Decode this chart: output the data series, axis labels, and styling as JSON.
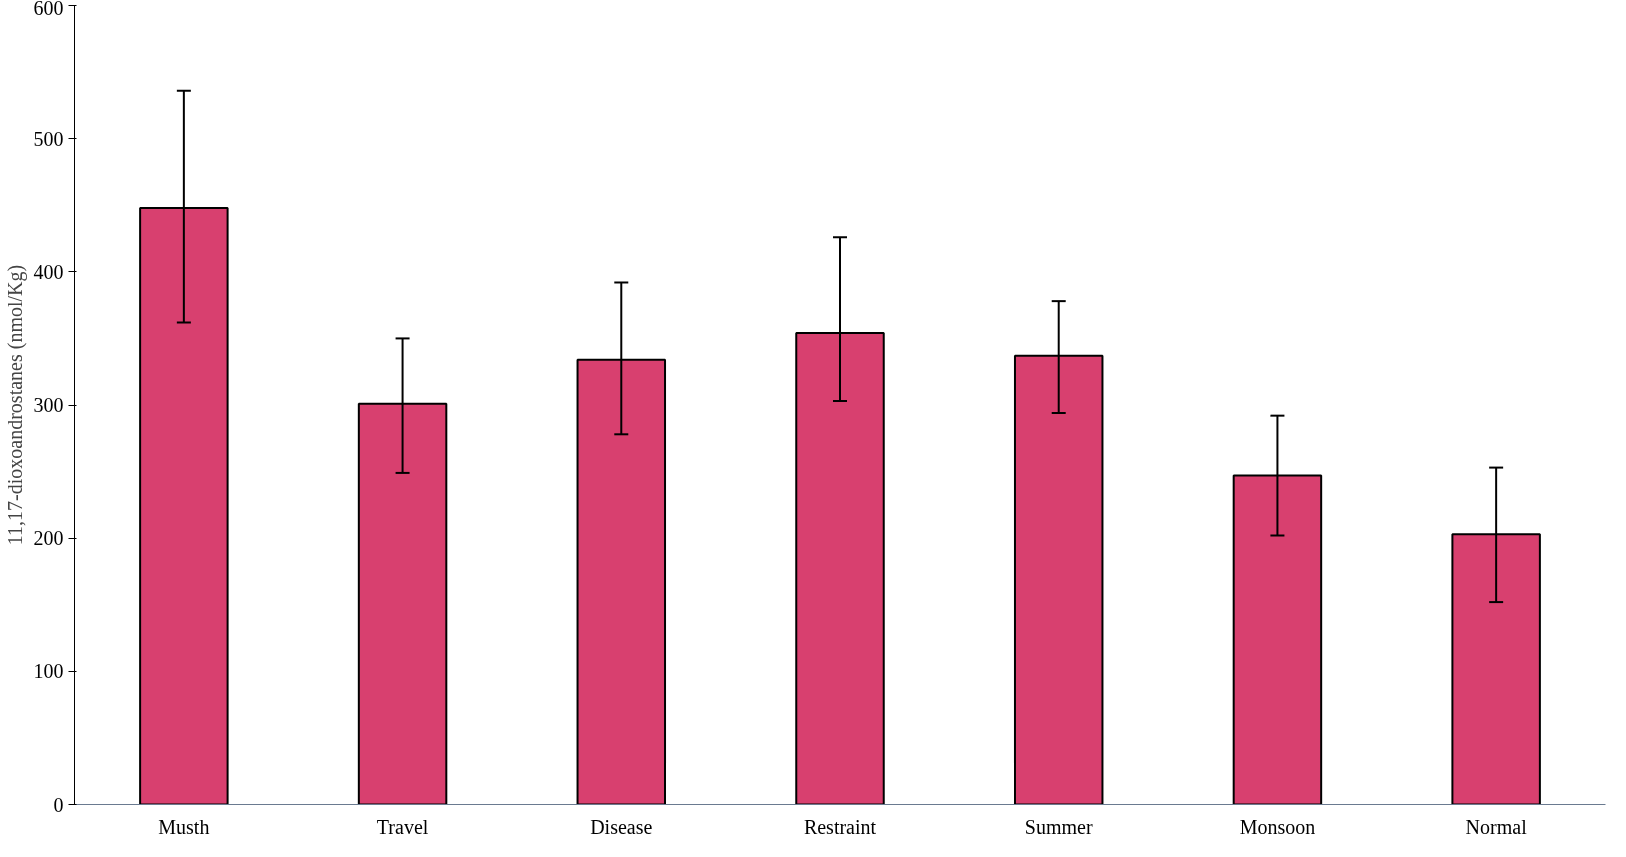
{
  "chart_data": {
    "type": "bar",
    "ylabel": "11,17-dioxoandrostanes (nmol/Kg)",
    "categories": [
      "Musth",
      "Travel",
      "Disease",
      "Restraint",
      "Summer",
      "Monsoon",
      "Normal"
    ],
    "values": [
      448,
      301,
      334,
      354,
      337,
      247,
      203
    ],
    "errors": [
      [
        362,
        536
      ],
      [
        249,
        350
      ],
      [
        278,
        392
      ],
      [
        303,
        426
      ],
      [
        294,
        378
      ],
      [
        202,
        292
      ],
      [
        152,
        253
      ]
    ],
    "color": "#d8406f",
    "ylim": [
      0,
      600
    ],
    "yticks": [
      0,
      100,
      200,
      300,
      400,
      500,
      600
    ],
    "grid": false
  }
}
